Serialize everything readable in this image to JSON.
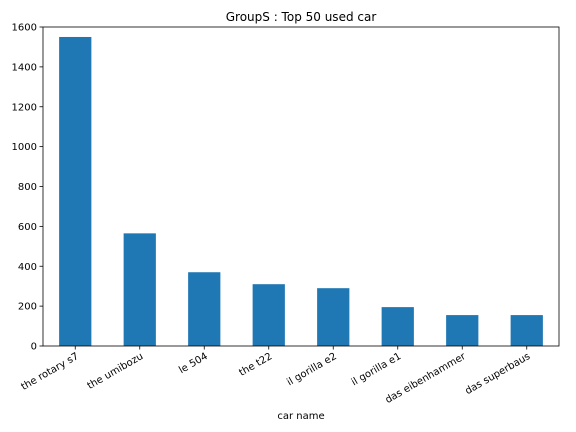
{
  "chart_data": {
    "type": "bar",
    "title": "GroupS : Top 50 used car",
    "xlabel": "car name",
    "ylabel": "",
    "categories": [
      "the rotary s7",
      "the umibozu",
      "le 504",
      "the t22",
      "il gorilla e2",
      "il gorilla e1",
      "das eibenhammer",
      "das superbaus"
    ],
    "values": [
      1550,
      565,
      370,
      310,
      290,
      195,
      155,
      155
    ],
    "ylim": [
      0,
      1600
    ],
    "yticks": [
      0,
      200,
      400,
      600,
      800,
      1000,
      1200,
      1400,
      1600
    ],
    "grid": false,
    "legend": "none",
    "bar_color": "#1f77b4"
  }
}
